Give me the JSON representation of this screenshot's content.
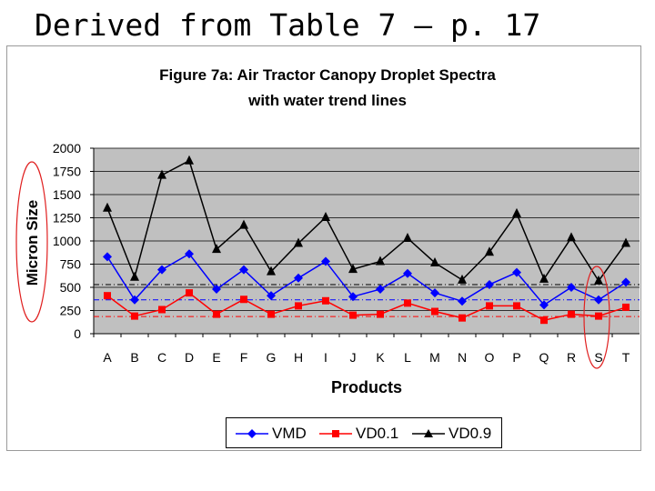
{
  "slide": {
    "heading": "Derived from Table 7 – p. 17"
  },
  "colors": {
    "plot_bg": "#c0c0c0",
    "vmd": "#0000ff",
    "vd01": "#ff0000",
    "vd09": "#000000",
    "annotation": "#e02020"
  },
  "chart_data": {
    "type": "line",
    "title": "Figure 7a: Air Tractor Canopy Droplet Spectra",
    "subtitle": "with water trend lines",
    "xlabel": "Products",
    "ylabel": "Micron Size",
    "ylim": [
      0,
      2000
    ],
    "yticks": [
      0,
      250,
      500,
      750,
      1000,
      1250,
      1500,
      1750,
      2000
    ],
    "grid": "horizontal",
    "legend": "bottom",
    "categories": [
      "A",
      "B",
      "C",
      "D",
      "E",
      "F",
      "G",
      "H",
      "I",
      "J",
      "K",
      "L",
      "M",
      "N",
      "O",
      "P",
      "Q",
      "R",
      "S",
      "T"
    ],
    "series": [
      {
        "name": "VMD",
        "color": "#0000ff",
        "marker": "diamond",
        "values": [
          830,
          365,
          690,
          860,
          480,
          690,
          410,
          600,
          780,
          400,
          480,
          650,
          440,
          350,
          530,
          660,
          310,
          500,
          365,
          555
        ]
      },
      {
        "name": "VD0.1",
        "color": "#ff0000",
        "marker": "square",
        "values": [
          410,
          190,
          260,
          440,
          210,
          370,
          210,
          300,
          355,
          200,
          210,
          330,
          240,
          170,
          300,
          300,
          145,
          210,
          190,
          285
        ]
      },
      {
        "name": "VD0.9",
        "color": "#000000",
        "marker": "triangle",
        "values": [
          1355,
          610,
          1710,
          1865,
          910,
          1170,
          670,
          975,
          1255,
          695,
          780,
          1030,
          765,
          580,
          880,
          1295,
          590,
          1035,
          570,
          975
        ]
      }
    ],
    "trend_lines": [
      {
        "series": "VD0.9",
        "value": 530,
        "color": "#000000"
      },
      {
        "series": "VMD",
        "value": 365,
        "color": "#0000ff"
      },
      {
        "series": "VD0.1",
        "value": 185,
        "color": "#ff0000"
      }
    ],
    "annotations": [
      "y-axis label circled",
      "category S circled"
    ]
  }
}
